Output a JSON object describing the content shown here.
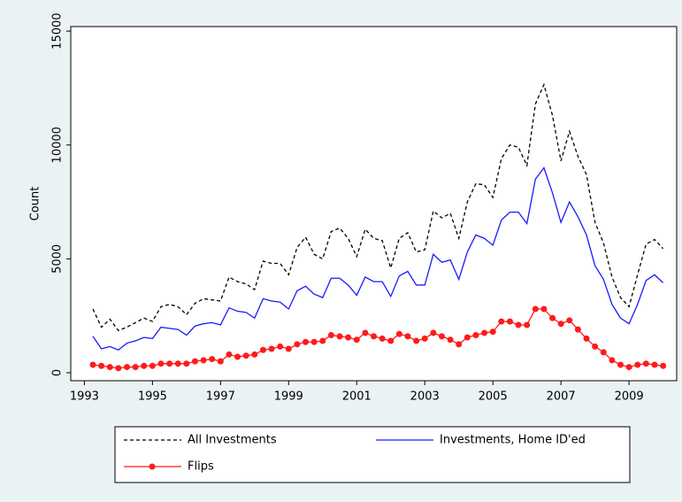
{
  "chart_data": {
    "type": "line",
    "y_label": "Count",
    "x": [
      1993.25,
      1993.5,
      1993.75,
      1994,
      1994.25,
      1994.5,
      1994.75,
      1995,
      1995.25,
      1995.5,
      1995.75,
      1996,
      1996.25,
      1996.5,
      1996.75,
      1997,
      1997.25,
      1997.5,
      1997.75,
      1998,
      1998.25,
      1998.5,
      1998.75,
      1999,
      1999.25,
      1999.5,
      1999.75,
      2000,
      2000.25,
      2000.5,
      2000.75,
      2001,
      2001.25,
      2001.5,
      2001.75,
      2002,
      2002.25,
      2002.5,
      2002.75,
      2003,
      2003.25,
      2003.5,
      2003.75,
      2004,
      2004.25,
      2004.5,
      2004.75,
      2005,
      2005.25,
      2005.5,
      2005.75,
      2006,
      2006.25,
      2006.5,
      2006.75,
      2007,
      2007.25,
      2007.5,
      2007.75,
      2008,
      2008.25,
      2008.5,
      2008.75,
      2009,
      2009.25,
      2009.5,
      2009.75,
      2010
    ],
    "series": [
      {
        "name": "All Investments",
        "color": "#000000",
        "dashed": true,
        "markers": false,
        "values": [
          2800,
          2000,
          2350,
          1850,
          2000,
          2200,
          2400,
          2250,
          2900,
          3000,
          2900,
          2550,
          3050,
          3250,
          3200,
          3150,
          4200,
          4000,
          3900,
          3650,
          4900,
          4800,
          4800,
          4300,
          5500,
          5950,
          5200,
          5000,
          6200,
          6350,
          5900,
          5100,
          6300,
          5900,
          5800,
          4600,
          5900,
          6150,
          5300,
          5400,
          7100,
          6800,
          7000,
          5900,
          7500,
          8300,
          8250,
          7700,
          9400,
          10000,
          9900,
          9100,
          11800,
          12650,
          11300,
          9300,
          10600,
          9500,
          8700,
          6600,
          5700,
          4200,
          3300,
          2900,
          4300,
          5650,
          5850,
          5450
        ]
      },
      {
        "name": "Investments, Home ID'ed",
        "color": "#1a1aff",
        "dashed": false,
        "markers": false,
        "values": [
          1600,
          1050,
          1150,
          1000,
          1300,
          1400,
          1550,
          1500,
          2000,
          1950,
          1900,
          1650,
          2050,
          2150,
          2200,
          2100,
          2850,
          2700,
          2650,
          2400,
          3250,
          3150,
          3100,
          2800,
          3600,
          3800,
          3450,
          3300,
          4150,
          4150,
          3850,
          3400,
          4200,
          4000,
          4000,
          3350,
          4250,
          4450,
          3850,
          3850,
          5200,
          4850,
          4950,
          4100,
          5300,
          6050,
          5900,
          5600,
          6700,
          7050,
          7050,
          6550,
          8500,
          9000,
          7900,
          6600,
          7500,
          6850,
          6050,
          4700,
          4100,
          3000,
          2400,
          2150,
          3000,
          4050,
          4300,
          3950
        ]
      },
      {
        "name": "Flips",
        "color": "#ff1a1a",
        "dashed": false,
        "markers": true,
        "values": [
          350,
          300,
          250,
          200,
          250,
          250,
          300,
          300,
          400,
          400,
          400,
          400,
          500,
          550,
          600,
          500,
          800,
          700,
          750,
          800,
          1000,
          1050,
          1150,
          1050,
          1250,
          1350,
          1350,
          1400,
          1650,
          1600,
          1550,
          1450,
          1750,
          1600,
          1500,
          1400,
          1700,
          1600,
          1400,
          1500,
          1750,
          1600,
          1450,
          1250,
          1550,
          1650,
          1750,
          1800,
          2250,
          2250,
          2100,
          2100,
          2800,
          2800,
          2400,
          2150,
          2300,
          1900,
          1500,
          1150,
          900,
          550,
          350,
          250,
          350,
          400,
          350,
          300
        ]
      }
    ],
    "xlim": [
      1992.6,
      2010.4
    ],
    "xticks": [
      1993,
      1995,
      1997,
      1999,
      2001,
      2003,
      2005,
      2007,
      2009
    ],
    "ylim": [
      -350,
      15200
    ],
    "yticks": [
      0,
      5000,
      10000,
      15000
    ],
    "grid": false
  }
}
